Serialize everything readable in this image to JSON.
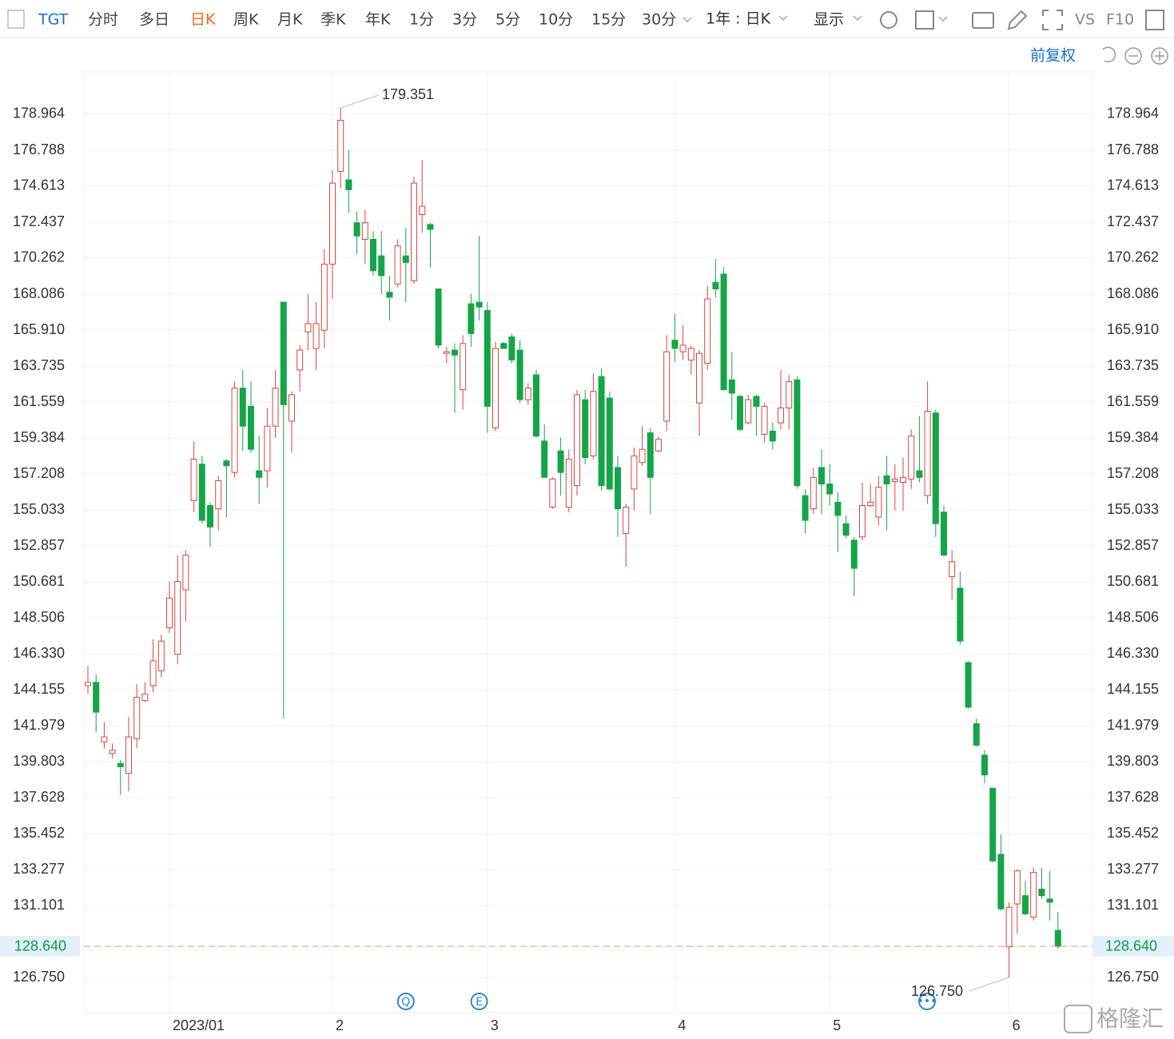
{
  "toolbar": {
    "symbol": "TGT",
    "periods": [
      "分时",
      "多日",
      "日K",
      "周K",
      "月K",
      "季K",
      "年K",
      "1分",
      "3分",
      "5分",
      "10分",
      "15分",
      "30分"
    ],
    "active_index": 2,
    "range": "1年 : 日K",
    "display": "显示",
    "compare": "VS",
    "f10": "F10",
    "adjust": "前复权"
  },
  "watermark": "格隆汇",
  "chart_data": {
    "type": "candlestick",
    "categories": [
      null,
      null,
      null,
      null,
      null,
      null,
      null,
      null,
      null,
      null,
      "2023/01",
      null,
      null,
      null,
      null,
      null,
      null,
      null,
      null,
      null,
      null,
      null,
      null,
      null,
      null,
      null,
      null,
      null,
      null,
      null,
      "2",
      null,
      null,
      null,
      null,
      null,
      null,
      null,
      null,
      null,
      null,
      null,
      null,
      null,
      null,
      null,
      null,
      null,
      null,
      "3",
      null,
      null,
      null,
      null,
      null,
      null,
      null,
      null,
      null,
      null,
      null,
      null,
      null,
      null,
      null,
      null,
      null,
      null,
      null,
      null,
      null,
      null,
      "4",
      null,
      null,
      null,
      null,
      null,
      null,
      null,
      null,
      null,
      null,
      null,
      null,
      null,
      null,
      null,
      null,
      null,
      null,
      "5",
      null,
      null,
      null,
      null,
      null,
      null,
      null,
      null,
      null,
      null,
      null,
      null,
      null,
      null,
      null,
      null,
      null,
      null,
      null,
      null,
      null,
      "6",
      null,
      null,
      null,
      null,
      null,
      null
    ],
    "open": [
      144.4,
      144.6,
      141.0,
      140.3,
      139.7,
      139.1,
      141.2,
      143.5,
      144.4,
      145.3,
      147.9,
      146.3,
      150.2,
      155.6,
      157.8,
      155.3,
      155.1,
      158.0,
      157.3,
      162.4,
      161.3,
      157.4,
      157.4,
      160.1,
      167.6,
      160.4,
      163.5,
      165.8,
      164.8,
      165.9,
      169.9,
      175.5,
      175.0,
      172.4,
      171.4,
      171.4,
      170.4,
      168.2,
      168.7,
      170.4,
      168.9,
      172.9,
      172.3,
      168.4,
      164.5,
      164.7,
      162.3,
      167.5,
      167.6,
      167.1,
      160.0,
      165.1,
      165.5,
      164.7,
      161.7,
      163.2,
      159.2,
      155.2,
      158.6,
      155.2,
      156.5,
      161.7,
      158.3,
      163.1,
      161.8,
      157.6,
      153.6,
      156.3,
      157.9,
      159.7,
      158.6,
      160.4,
      165.3,
      164.6,
      164.1,
      161.5,
      163.9,
      168.8,
      169.3,
      162.9,
      161.9,
      160.3,
      161.9,
      159.6,
      159.8,
      160.3,
      161.2,
      162.9,
      155.9,
      155.1,
      157.6,
      156.6,
      155.5,
      154.2,
      153.2,
      153.4,
      155.3,
      154.6,
      157.1,
      156.75,
      156.7,
      156.9,
      157.4,
      155.9,
      160.9,
      154.9,
      151.0,
      150.3,
      145.8,
      142.1,
      140.2,
      138.2,
      134.2,
      128.6,
      131.2,
      131.7,
      130.4,
      132.1,
      131.5,
      129.6
    ],
    "high": [
      145.6,
      145.1,
      142.2,
      140.9,
      139.9,
      142.5,
      144.5,
      144.6,
      147.2,
      147.5,
      150.7,
      152.3,
      152.6,
      159.2,
      158.3,
      155.5,
      157.1,
      158.1,
      162.8,
      163.5,
      162.8,
      159.5,
      161.2,
      163.5,
      167.6,
      162.2,
      165.0,
      168.1,
      167.6,
      170.8,
      175.6,
      179.351,
      176.8,
      173.1,
      173.2,
      171.9,
      171.9,
      169.2,
      171.4,
      172.1,
      175.2,
      176.2,
      172.4,
      168.4,
      164.9,
      165.1,
      165.6,
      168.1,
      171.6,
      167.6,
      165.2,
      165.2,
      165.7,
      165.3,
      162.7,
      163.5,
      160.2,
      157.0,
      159.4,
      158.7,
      162.3,
      162.3,
      163.3,
      163.6,
      162.2,
      158.3,
      155.4,
      158.8,
      160.1,
      160.0,
      159.5,
      165.6,
      166.9,
      166.2,
      164.99,
      164.7,
      168.6,
      170.2,
      169.7,
      164.6,
      162.0,
      162.0,
      162.0,
      161.5,
      160.3,
      163.5,
      163.2,
      163.1,
      156.3,
      157.6,
      158.7,
      157.8,
      156.1,
      154.7,
      153.4,
      156.7,
      156.6,
      157.1,
      158.3,
      157.8,
      158.2,
      159.9,
      160.7,
      162.8,
      161.1,
      155.3,
      152.6,
      151.3,
      145.9,
      142.4,
      140.5,
      138.2,
      135.4,
      131.3,
      133.3,
      132.6,
      133.4,
      133.4,
      133.2,
      130.7
    ],
    "low": [
      143.9,
      141.6,
      140.6,
      140.0,
      137.8,
      138.0,
      140.6,
      143.4,
      144.0,
      144.9,
      147.6,
      145.7,
      148.3,
      154.9,
      154.2,
      152.8,
      153.8,
      154.6,
      157.0,
      158.6,
      158.5,
      155.4,
      156.4,
      159.4,
      142.4,
      158.5,
      162.2,
      164.7,
      163.5,
      164.8,
      167.8,
      174.5,
      173.0,
      170.5,
      169.9,
      169.2,
      168.1,
      166.5,
      168.5,
      167.6,
      168.7,
      171.8,
      169.7,
      164.8,
      163.9,
      160.9,
      161.1,
      164.9,
      166.5,
      159.7,
      159.8,
      164.8,
      163.9,
      161.5,
      161.4,
      159.4,
      157.0,
      155.1,
      155.9,
      154.9,
      155.9,
      157.8,
      158.1,
      156.2,
      156.2,
      153.4,
      151.6,
      155.0,
      157.7,
      154.8,
      158.5,
      159.8,
      164.0,
      164.1,
      163.2,
      159.5,
      163.5,
      167.9,
      162.3,
      160.5,
      159.8,
      160.2,
      159.5,
      159.1,
      158.7,
      159.9,
      159.9,
      156.3,
      153.6,
      154.8,
      154.8,
      155.3,
      152.5,
      153.3,
      149.8,
      153.2,
      155.2,
      154.1,
      153.8,
      155.0,
      155.0,
      156.3,
      156.7,
      155.4,
      153.4,
      152.2,
      149.6,
      146.9,
      143.0,
      140.7,
      138.5,
      133.7,
      130.8,
      126.75,
      129.4,
      130.5,
      130.2,
      131.5,
      130.2,
      128.5
    ],
    "close": [
      144.6,
      142.8,
      141.3,
      140.5,
      139.5,
      141.3,
      143.7,
      143.9,
      145.9,
      147.1,
      149.7,
      150.7,
      152.3,
      158.1,
      154.4,
      154.0,
      156.8,
      157.7,
      162.4,
      160.1,
      158.7,
      157.0,
      160.1,
      162.4,
      161.4,
      162.0,
      164.7,
      166.3,
      166.3,
      169.9,
      174.8,
      178.6,
      174.4,
      171.6,
      172.4,
      169.5,
      169.2,
      167.9,
      171.0,
      170.0,
      174.8,
      173.4,
      172.0,
      165.0,
      164.6,
      164.4,
      165.1,
      165.7,
      167.3,
      161.3,
      164.8,
      164.8,
      164.1,
      161.7,
      162.4,
      159.5,
      157.0,
      156.9,
      157.3,
      158.1,
      162.0,
      158.2,
      162.2,
      156.5,
      156.3,
      155.1,
      155.2,
      158.3,
      158.7,
      157.0,
      159.3,
      164.6,
      164.8,
      165.0,
      164.8,
      164.5,
      167.8,
      168.4,
      162.3,
      162.1,
      159.9,
      161.7,
      161.3,
      161.3,
      159.2,
      161.2,
      162.8,
      156.5,
      154.4,
      157.0,
      156.6,
      156.0,
      154.7,
      153.5,
      151.5,
      155.3,
      155.5,
      156.4,
      156.6,
      156.9,
      157.0,
      159.5,
      157.0,
      161.0,
      154.2,
      152.3,
      151.9,
      147.1,
      143.1,
      140.8,
      139.0,
      133.8,
      130.9,
      131.0,
      133.2,
      130.6,
      133.1,
      131.7,
      131.3,
      128.64
    ],
    "up_color": "#d9463e",
    "down_color": "#14a548",
    "ylim": [
      124.625,
      181.526
    ],
    "yticks": [
      {
        "value": 126.75,
        "label": "126.750"
      },
      131.101,
      133.277,
      135.452,
      137.628,
      139.803,
      141.979,
      144.155,
      {
        "value": 146.33,
        "label": "146.330"
      },
      148.506,
      150.681,
      152.857,
      155.033,
      157.208,
      159.384,
      161.559,
      163.735,
      {
        "value": 165.91,
        "label": "165.910"
      },
      168.086,
      170.262,
      172.437,
      174.613,
      176.788,
      178.964
    ],
    "grid": true,
    "last_price": {
      "value": 128.64,
      "label": "128.640"
    },
    "high_label": "179.351",
    "low_label": "126.750",
    "events": [
      {
        "label": "Q",
        "index": 39
      },
      {
        "label": "E",
        "index": 48
      }
    ]
  }
}
